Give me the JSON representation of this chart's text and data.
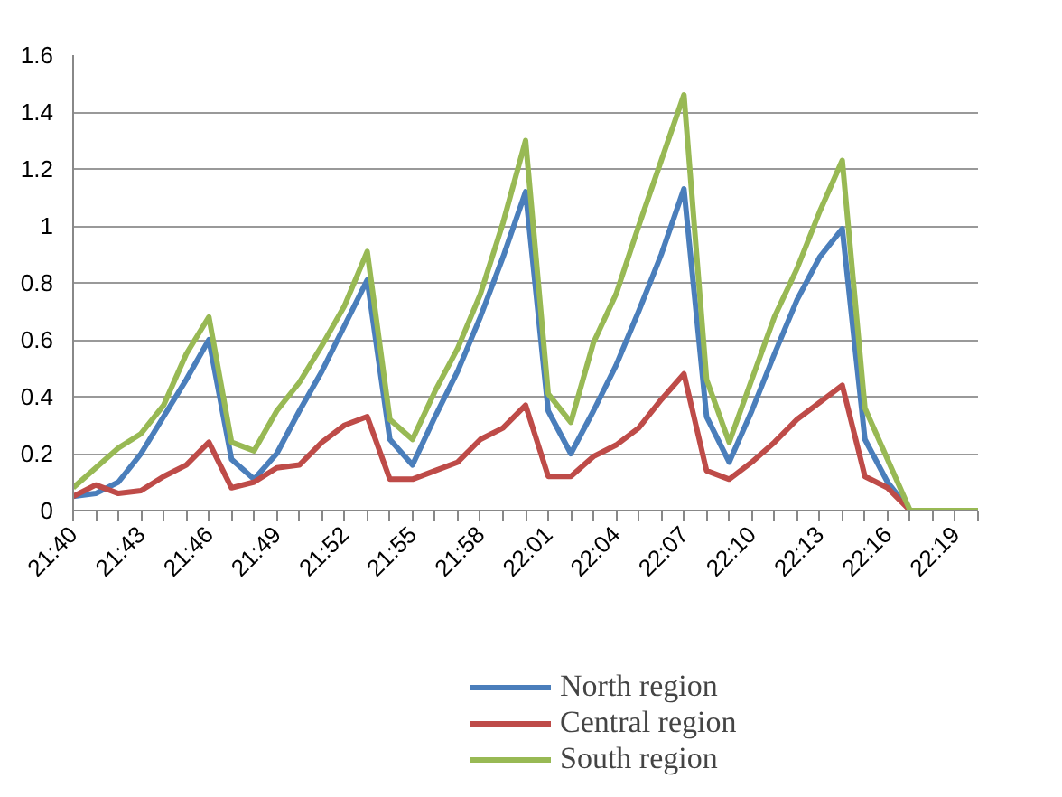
{
  "chart_data": {
    "type": "line",
    "categories": [
      "21:40",
      null,
      null,
      "21:43",
      null,
      null,
      "21:46",
      null,
      null,
      "21:49",
      null,
      null,
      "21:52",
      null,
      null,
      "21:55",
      null,
      null,
      "21:58",
      null,
      null,
      "22:01",
      null,
      null,
      "22:04",
      null,
      null,
      "22:07",
      null,
      null,
      "22:10",
      null,
      null,
      "22:13",
      null,
      null,
      "22:16",
      null,
      null,
      "22:19",
      null
    ],
    "series": [
      {
        "name": "North region",
        "color": "#4a7ebb",
        "values": [
          0.05,
          0.06,
          0.1,
          0.2,
          0.33,
          0.46,
          0.6,
          0.18,
          0.11,
          0.2,
          0.35,
          0.49,
          0.65,
          0.81,
          0.25,
          0.16,
          0.33,
          0.49,
          0.68,
          0.89,
          1.12,
          0.35,
          0.2,
          0.35,
          0.51,
          0.7,
          0.9,
          1.13,
          0.33,
          0.17,
          0.35,
          0.55,
          0.74,
          0.89,
          0.99,
          0.25,
          0.1,
          0,
          0,
          null,
          null
        ]
      },
      {
        "name": "Central region",
        "color": "#be4b48",
        "values": [
          0.05,
          0.09,
          0.06,
          0.07,
          0.12,
          0.16,
          0.24,
          0.08,
          0.1,
          0.15,
          0.16,
          0.24,
          0.3,
          0.33,
          0.11,
          0.11,
          0.14,
          0.17,
          0.25,
          0.29,
          0.37,
          0.12,
          0.12,
          0.19,
          0.23,
          0.29,
          0.39,
          0.48,
          0.14,
          0.11,
          0.17,
          0.24,
          0.32,
          0.38,
          0.44,
          0.12,
          0.08,
          0,
          0,
          null,
          null
        ]
      },
      {
        "name": "South region",
        "color": "#98b954",
        "values": [
          0.08,
          0.15,
          0.22,
          0.27,
          0.37,
          0.55,
          0.68,
          0.24,
          0.21,
          0.35,
          0.45,
          0.58,
          0.72,
          0.91,
          0.32,
          0.25,
          0.42,
          0.57,
          0.76,
          1.01,
          1.3,
          0.41,
          0.31,
          0.59,
          0.76,
          1.0,
          1.23,
          1.46,
          0.46,
          0.24,
          0.46,
          0.68,
          0.85,
          1.05,
          1.23,
          0.36,
          0.18,
          0,
          0,
          0,
          0
        ]
      }
    ],
    "ylim": [
      0,
      1.6
    ],
    "yticks": [
      0,
      0.2,
      0.4,
      0.6,
      0.8,
      1,
      1.2,
      1.4,
      1.6
    ],
    "grid": "y",
    "legend": "bottom",
    "marker": "none",
    "line_style": "solid"
  }
}
